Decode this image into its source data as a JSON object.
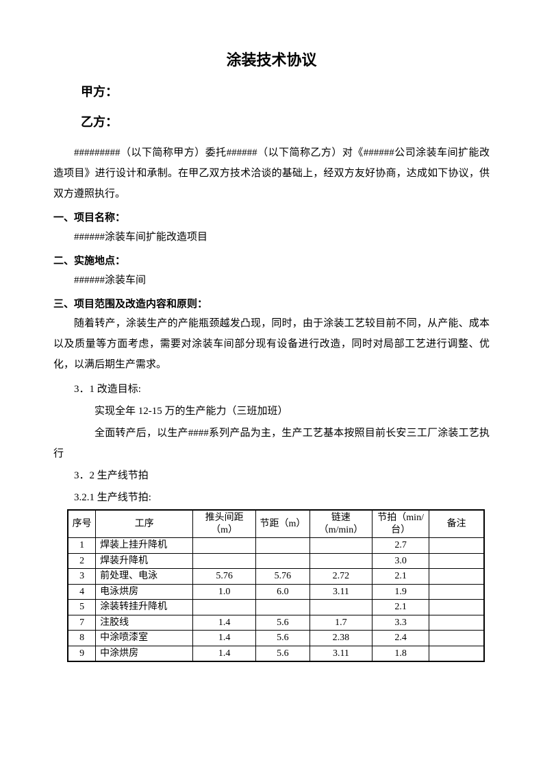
{
  "title": "涂装技术协议",
  "parties": {
    "a_label": "甲方：",
    "b_label": "乙方："
  },
  "intro": "#########（以下简称甲方）委托######（以下简称乙方）对《######公司涂装车间扩能改造项目》进行设计和承制。在甲乙双方技术洽谈的基础上，经双方友好协商，达成如下协议，供双方遵照执行。",
  "section1": {
    "heading": "一、项目名称：",
    "body": "######涂装车间扩能改造项目"
  },
  "section2": {
    "heading": "二、实施地点：",
    "body": "######涂装车间"
  },
  "section3": {
    "heading": "三、项目范围及改造内容和原则：",
    "para": "随着转产，涂装生产的产能瓶颈越发凸现，同时，由于涂装工艺较目前不同，从产能、成本以及质量等方面考虑，需要对涂装车间部分现有设备进行改造，同时对局部工艺进行调整、优化，以满后期生产需求。",
    "s31_label": "3．1 改造目标:",
    "s31_line1": "实现全年 12-15 万的生产能力（三班加班）",
    "s31_line2": "全面转产后，以生产####系列产品为主，生产工艺基本按照目前长安三工厂涂装工艺执行",
    "s32_label": "3．2 生产线节拍",
    "s321_label": "3.2.1 生产线节拍:"
  },
  "table": {
    "columns": [
      "序号",
      "工序",
      "推头间距（m）",
      "节距（m）",
      "链速（m/min）",
      "节拍（min/台）",
      "备注"
    ],
    "col_widths": [
      "34px",
      "150px",
      "90px",
      "75px",
      "85px",
      "80px",
      "80px"
    ],
    "rows": [
      [
        "1",
        "焊装上挂升降机",
        "",
        "",
        "",
        "2.7",
        ""
      ],
      [
        "2",
        "焊装升降机",
        "",
        "",
        "",
        "3.0",
        ""
      ],
      [
        "3",
        "前处理、电泳",
        "5.76",
        "5.76",
        "2.72",
        "2.1",
        ""
      ],
      [
        "4",
        "电泳烘房",
        "1.0",
        "6.0",
        "3.11",
        "1.9",
        ""
      ],
      [
        "5",
        "涂装转挂升降机",
        "",
        "",
        "",
        "2.1",
        ""
      ],
      [
        "7",
        "注胶线",
        "1.4",
        "5.6",
        "1.7",
        "3.3",
        ""
      ],
      [
        "8",
        "中涂喷漆室",
        "1.4",
        "5.6",
        "2.38",
        "2.4",
        ""
      ],
      [
        "9",
        "中涂烘房",
        "1.4",
        "5.6",
        "3.11",
        "1.8",
        ""
      ]
    ]
  },
  "colors": {
    "text": "#000000",
    "background": "#ffffff",
    "border": "#000000"
  }
}
